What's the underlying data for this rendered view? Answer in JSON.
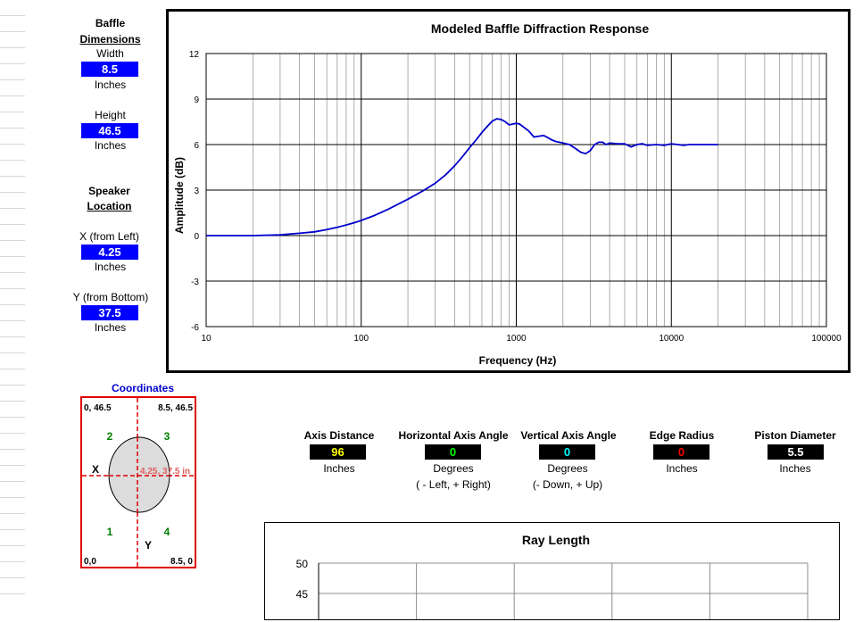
{
  "dimensions": {
    "heading_line1": "Baffle",
    "heading_line2": "Dimensions",
    "width_label": "Width",
    "width_value": "8.5",
    "width_unit": "Inches",
    "height_label": "Height",
    "height_value": "46.5",
    "height_unit": "Inches"
  },
  "location": {
    "heading_line1": "Speaker",
    "heading_line2": "Location",
    "x_label": "X (from Left)",
    "x_value": "4.25",
    "x_unit": "Inches",
    "y_label": "Y (from Bottom)",
    "y_value": "37.5",
    "y_unit": "Inches"
  },
  "coordinates": {
    "title": "Coordinates",
    "top_left": "0, 46.5",
    "top_right": "8.5, 46.5",
    "bottom_left": "0,0",
    "bottom_right": "8.5, 0",
    "quad1": "1",
    "quad2": "2",
    "quad3": "3",
    "quad4": "4",
    "x_axis": "X",
    "y_axis": "Y",
    "point_label": "4.25, 37.5 in",
    "colors": {
      "border": "#e00000",
      "quadrant": "#008000",
      "cross": "#e00000",
      "point": "#e06060"
    }
  },
  "params": {
    "axis_distance": {
      "label": "Axis Distance",
      "value": "96",
      "unit": "Inches",
      "note": "",
      "color": "#ffff00"
    },
    "horizontal_angle": {
      "label": "Horizontal Axis Angle",
      "value": "0",
      "unit": "Degrees",
      "note": "( - Left, + Right)",
      "color": "#00ff00"
    },
    "vertical_angle": {
      "label": "Vertical Axis Angle",
      "value": "0",
      "unit": "Degrees",
      "note": "(- Down, + Up)",
      "color": "#00ffff"
    },
    "edge_radius": {
      "label": "Edge Radius",
      "value": "0",
      "unit": "Inches",
      "note": "",
      "color": "#ff0000"
    },
    "piston_diameter": {
      "label": "Piston Diameter",
      "value": "5.5",
      "unit": "Inches",
      "note": "",
      "color": "#ffffff"
    }
  },
  "chart_data": [
    {
      "type": "line",
      "title": "Modeled Baffle Diffraction Response",
      "xlabel": "Frequency  (Hz)",
      "ylabel": "Amplitude (dB)",
      "xscale": "log",
      "xlim": [
        10,
        100000
      ],
      "ylim": [
        -6,
        12
      ],
      "xticks": [
        "10",
        "100",
        "1000",
        "10000",
        "100000"
      ],
      "yticks": [
        "12",
        "9",
        "6",
        "3",
        "0",
        "-3",
        "-6"
      ],
      "grid": true,
      "line_color": "#0000cc",
      "series": [
        {
          "name": "",
          "x": [
            10,
            20,
            30,
            40,
            50,
            60,
            70,
            80,
            90,
            100,
            120,
            150,
            200,
            250,
            300,
            350,
            400,
            450,
            500,
            550,
            600,
            650,
            700,
            750,
            800,
            850,
            900,
            950,
            1000,
            1050,
            1100,
            1200,
            1300,
            1400,
            1500,
            1600,
            1700,
            1800,
            2000,
            2200,
            2400,
            2600,
            2800,
            3000,
            3200,
            3400,
            3600,
            3800,
            4000,
            4500,
            5000,
            5500,
            6000,
            6500,
            7000,
            8000,
            9000,
            10000,
            11000,
            12000,
            13000,
            14000,
            16000,
            18000,
            20000
          ],
          "y": [
            0,
            0,
            0.05,
            0.15,
            0.25,
            0.4,
            0.55,
            0.7,
            0.85,
            1.0,
            1.3,
            1.75,
            2.4,
            2.95,
            3.45,
            4.0,
            4.6,
            5.2,
            5.8,
            6.3,
            6.8,
            7.2,
            7.55,
            7.7,
            7.65,
            7.5,
            7.3,
            7.35,
            7.4,
            7.35,
            7.2,
            6.9,
            6.5,
            6.55,
            6.6,
            6.45,
            6.3,
            6.2,
            6.1,
            6.0,
            5.75,
            5.5,
            5.4,
            5.6,
            6.0,
            6.15,
            6.15,
            6.0,
            6.1,
            6.05,
            6.05,
            5.85,
            6.0,
            6.05,
            5.95,
            6.0,
            5.95,
            6.05,
            6.0,
            5.95,
            6.0,
            6.0,
            6.0,
            6.0,
            6.0
          ]
        }
      ]
    },
    {
      "type": "line",
      "title": "Ray Length",
      "ylim": [
        0,
        50
      ],
      "yticks": [
        "50",
        "45"
      ],
      "grid": true,
      "series": []
    }
  ]
}
